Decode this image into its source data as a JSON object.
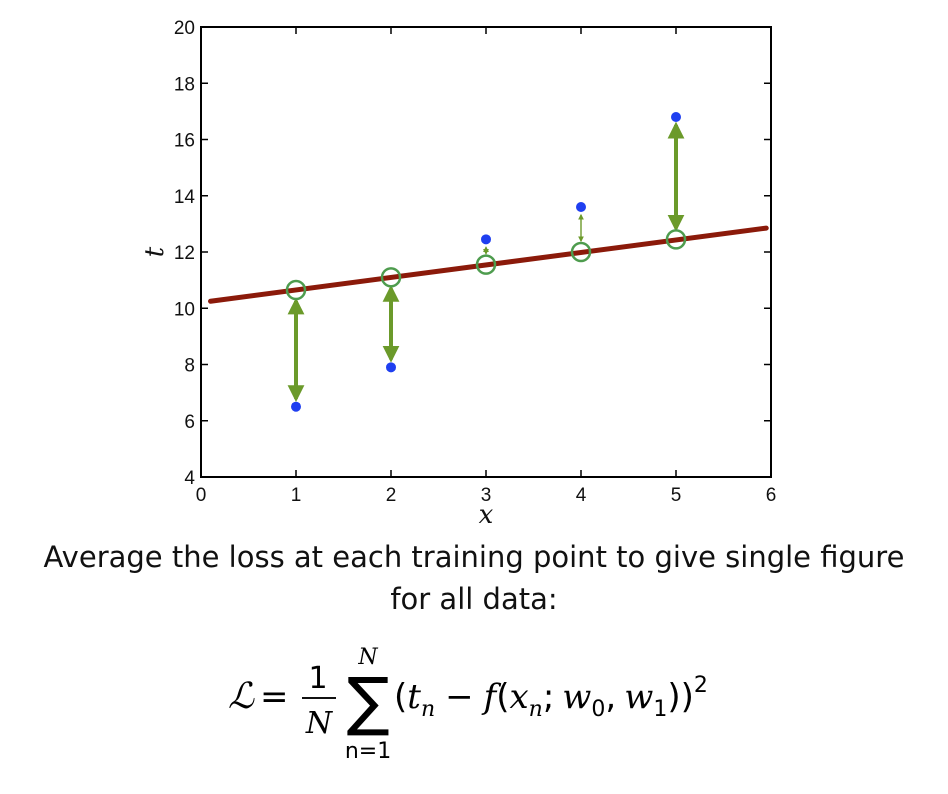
{
  "chart_data": {
    "type": "scatter",
    "xlabel": "x",
    "ylabel": "t",
    "xlim": [
      0,
      6
    ],
    "ylim": [
      4,
      20
    ],
    "x_ticks": [
      0,
      1,
      2,
      3,
      4,
      5,
      6
    ],
    "y_ticks": [
      4,
      6,
      8,
      10,
      12,
      14,
      16,
      18,
      20
    ],
    "grid": false,
    "points": [
      {
        "x": 1,
        "t": 6.5,
        "pred": 10.65
      },
      {
        "x": 2,
        "t": 7.9,
        "pred": 11.1
      },
      {
        "x": 3,
        "t": 12.45,
        "pred": 11.55
      },
      {
        "x": 4,
        "t": 13.6,
        "pred": 12.0
      },
      {
        "x": 5,
        "t": 16.8,
        "pred": 12.45
      }
    ],
    "fit_line": {
      "x": [
        0.1,
        5.95
      ],
      "y": [
        10.25,
        12.85
      ]
    },
    "colors": {
      "points": "#1f3ff0",
      "line": "#8b1a0a",
      "residual": "#6b9a2a",
      "pred_marker": "#4e9c4e"
    }
  },
  "caption": {
    "line1": "Average the loss at each training point to give single figure",
    "line2": "for all data:"
  },
  "formula": {
    "lhs": "ℒ",
    "equals": "=",
    "frac_num": "1",
    "frac_den": "N",
    "sum_symbol": "∑",
    "sum_upper": "N",
    "sum_lower": "n=1",
    "open_paren": "(",
    "t": "t",
    "t_sub": "n",
    "minus": "−",
    "f": "f",
    "inner_open": "(",
    "x": "x",
    "x_sub": "n",
    "semicolon": ";",
    "w0": "w",
    "w0_sub": "0",
    "comma": ",",
    "w1": "w",
    "w1_sub": "1",
    "close_parens": "))",
    "power": "2"
  }
}
